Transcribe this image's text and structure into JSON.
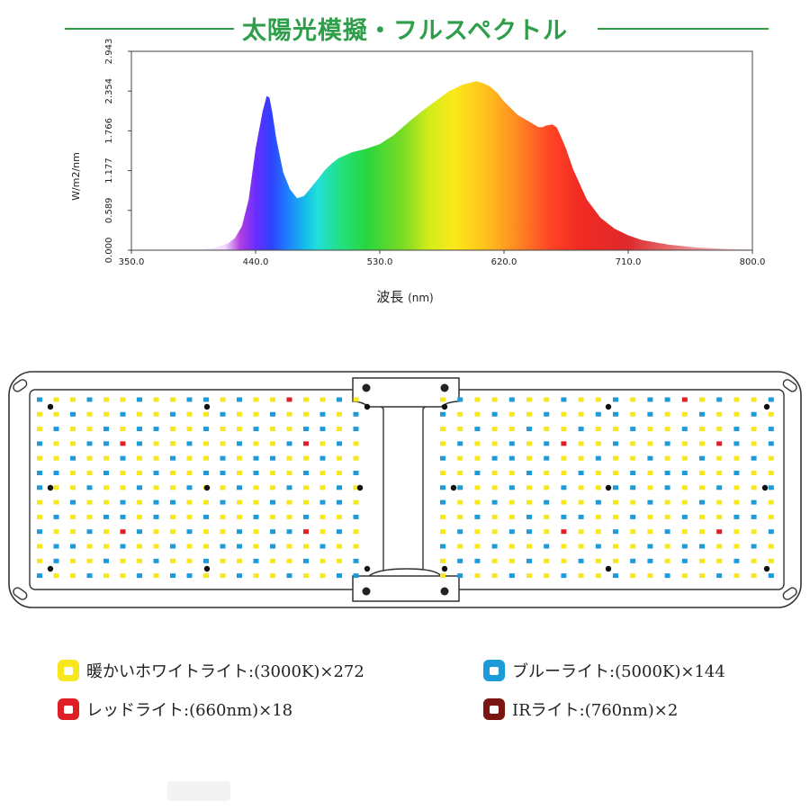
{
  "title": "太陽光模擬・フルスペクトル",
  "chart_data": {
    "type": "area",
    "title": "太陽光模擬・フルスペクトル",
    "xlabel": "波長",
    "xlabel_unit": "(nm)",
    "ylabel": "W/m2/nm",
    "xlim": [
      350,
      800
    ],
    "ylim": [
      0,
      2.943
    ],
    "x_ticks": [
      "350.0",
      "440.0",
      "530.0",
      "620.0",
      "710.0",
      "800.0"
    ],
    "y_ticks": [
      "0.000",
      "0.589",
      "1.177",
      "1.766",
      "2.354",
      "2.943"
    ],
    "grid": false,
    "fill": "visible-spectrum gradient",
    "x": [
      350,
      400,
      410,
      420,
      425,
      430,
      435,
      440,
      445,
      448,
      450,
      452,
      455,
      460,
      465,
      470,
      475,
      480,
      485,
      490,
      495,
      500,
      510,
      520,
      530,
      540,
      550,
      560,
      570,
      580,
      590,
      600,
      605,
      610,
      615,
      620,
      630,
      640,
      645,
      648,
      650,
      655,
      658,
      660,
      665,
      670,
      680,
      690,
      700,
      710,
      720,
      740,
      760,
      780,
      800
    ],
    "y": [
      0.0,
      0.01,
      0.03,
      0.1,
      0.18,
      0.35,
      0.75,
      1.5,
      2.05,
      2.28,
      2.26,
      2.05,
      1.65,
      1.15,
      0.9,
      0.77,
      0.8,
      0.92,
      1.05,
      1.18,
      1.28,
      1.36,
      1.45,
      1.5,
      1.57,
      1.7,
      1.88,
      2.05,
      2.2,
      2.35,
      2.45,
      2.5,
      2.47,
      2.42,
      2.33,
      2.2,
      2.0,
      1.88,
      1.82,
      1.82,
      1.84,
      1.86,
      1.82,
      1.74,
      1.5,
      1.2,
      0.75,
      0.48,
      0.32,
      0.22,
      0.15,
      0.08,
      0.04,
      0.02,
      0.01
    ]
  },
  "panel": {
    "white_color": "#f7e81e",
    "blue_color": "#1c9bd8",
    "red_color": "#e01e26",
    "ir_color": "#7a1512",
    "frame_color": "#333333"
  },
  "legend": [
    {
      "label": "暖かいホワイトライト:(3000K)×272",
      "color": "#f7e81e",
      "border": "#f7e81e"
    },
    {
      "label": "ブルーライト:(5000K)×144",
      "color": "#1c9bd8",
      "border": "#1c9bd8"
    },
    {
      "label": "レッドライト:(660nm)×18",
      "color": "#e01e26",
      "border": "#e01e26"
    },
    {
      "label": "IRライト:(760nm)×2",
      "color": "#7a1512",
      "border": "#7a1512"
    }
  ]
}
